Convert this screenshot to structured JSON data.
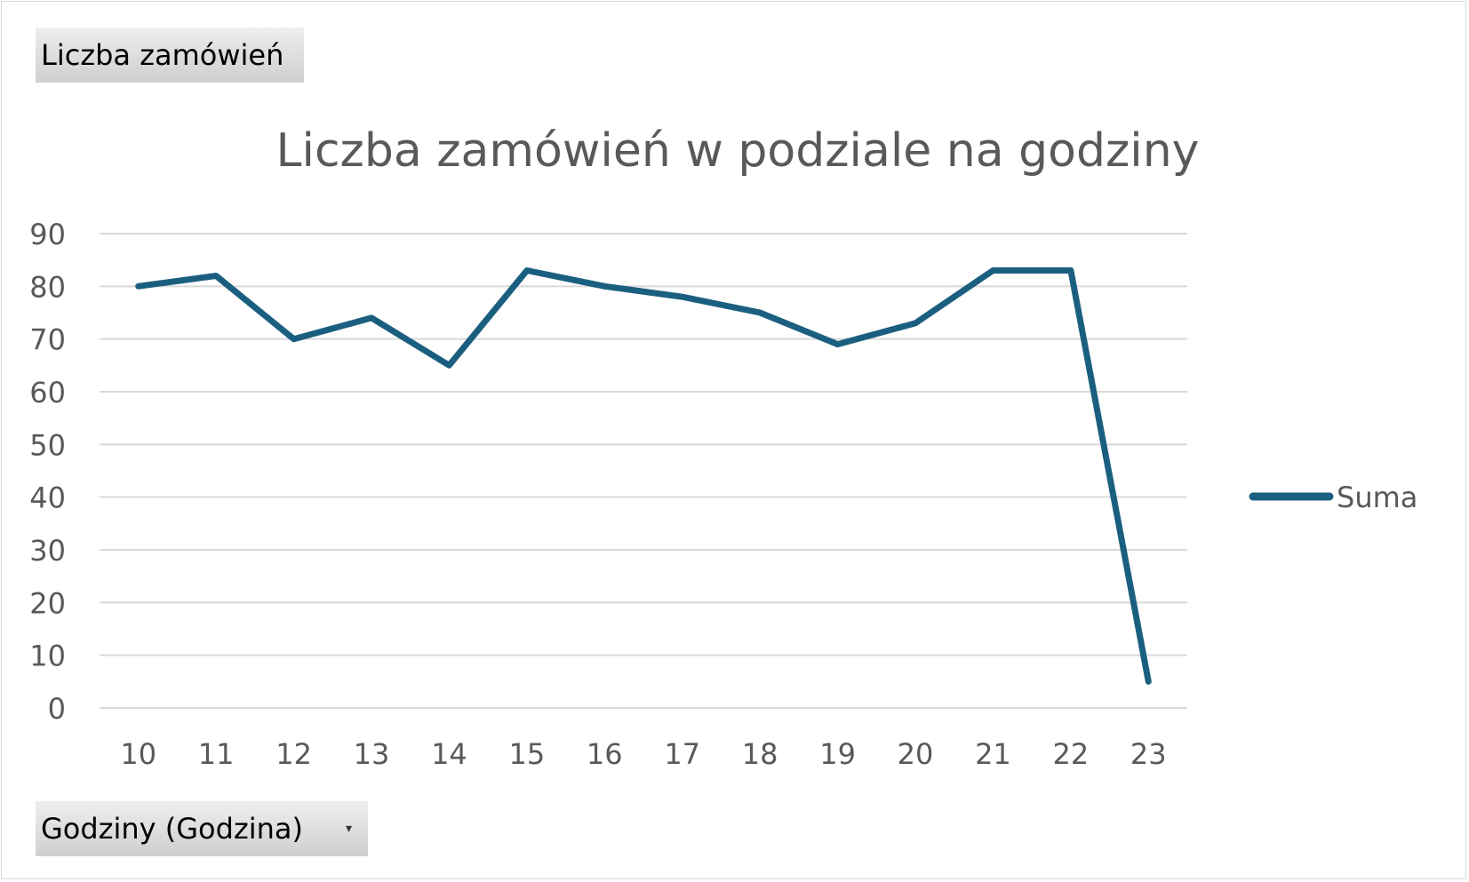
{
  "pivot": {
    "values_field": "Liczba zamówień",
    "axis_field": "Godziny (Godzina)",
    "axis_dropdown_icon": "chevron-down-icon"
  },
  "chart_data": {
    "type": "line",
    "title": "Liczba zamówień w podziale na godziny",
    "xlabel": "",
    "ylabel": "",
    "categories": [
      "10",
      "11",
      "12",
      "13",
      "14",
      "15",
      "16",
      "17",
      "18",
      "19",
      "20",
      "21",
      "22",
      "23"
    ],
    "series": [
      {
        "name": "Suma",
        "color": "#1b5f80",
        "values": [
          80,
          82,
          70,
          74,
          65,
          83,
          80,
          78,
          75,
          69,
          73,
          83,
          83,
          5
        ]
      }
    ],
    "ylim": [
      0,
      90
    ],
    "y_ticks": [
      0,
      10,
      20,
      30,
      40,
      50,
      60,
      70,
      80,
      90
    ],
    "grid": true,
    "legend": "right"
  }
}
